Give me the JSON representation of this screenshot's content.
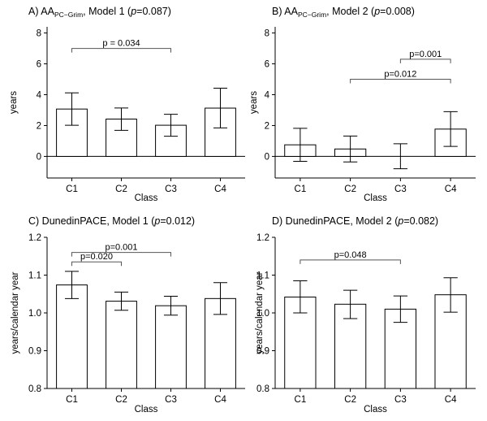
{
  "chart_data": [
    {
      "type": "bar",
      "title_parts": [
        {
          "text": "A) AA",
          "style": "normal"
        },
        {
          "text": "PC−Grim",
          "style": "sub"
        },
        {
          "text": ", Model 1 (",
          "style": "normal"
        },
        {
          "text": "p",
          "style": "italic"
        },
        {
          "text": "=0.087)",
          "style": "normal"
        }
      ],
      "categories": [
        "C1",
        "C2",
        "C3",
        "C4"
      ],
      "values": [
        3.07,
        2.42,
        2.02,
        3.13
      ],
      "error_low": [
        2.02,
        1.69,
        1.31,
        1.85
      ],
      "error_high": [
        4.12,
        3.14,
        2.73,
        4.42
      ],
      "xlabel": "Class",
      "ylabel": "years",
      "ylim": [
        -1.4,
        8.4
      ],
      "yticks": [
        0,
        2,
        4,
        6,
        8
      ],
      "ytick_labels": [
        "0",
        "2",
        "4",
        "6",
        "8"
      ],
      "zero_line": true,
      "comparisons": [
        {
          "from": 0,
          "to": 2,
          "y": 7.0,
          "label": "p = 0.034"
        }
      ]
    },
    {
      "type": "bar",
      "title_parts": [
        {
          "text": "B) AA",
          "style": "normal"
        },
        {
          "text": "PC−Grim",
          "style": "sub"
        },
        {
          "text": ", Model 2 (",
          "style": "normal"
        },
        {
          "text": "p",
          "style": "italic"
        },
        {
          "text": "=0.008)",
          "style": "normal"
        }
      ],
      "categories": [
        "C1",
        "C2",
        "C3",
        "C4"
      ],
      "values": [
        0.75,
        0.48,
        0.0,
        1.77
      ],
      "error_low": [
        -0.32,
        -0.36,
        -0.8,
        0.65
      ],
      "error_high": [
        1.82,
        1.32,
        0.82,
        2.9
      ],
      "xlabel": "Class",
      "ylabel": "years",
      "ylim": [
        -1.4,
        8.4
      ],
      "yticks": [
        0,
        2,
        4,
        6,
        8
      ],
      "ytick_labels": [
        "0",
        "2",
        "4",
        "6",
        "8"
      ],
      "zero_line": true,
      "comparisons": [
        {
          "from": 2,
          "to": 3,
          "y": 6.3,
          "label": "p=0.001"
        },
        {
          "from": 1,
          "to": 3,
          "y": 5.0,
          "label": "p=0.012"
        }
      ]
    },
    {
      "type": "bar",
      "title_parts": [
        {
          "text": "C) DunedinPACE, Model 1 (",
          "style": "normal"
        },
        {
          "text": "p",
          "style": "italic"
        },
        {
          "text": "=0.012)",
          "style": "normal"
        }
      ],
      "categories": [
        "C1",
        "C2",
        "C3",
        "C4"
      ],
      "values": [
        1.074,
        1.031,
        1.019,
        1.038
      ],
      "error_low": [
        1.038,
        1.007,
        0.994,
        0.996
      ],
      "error_high": [
        1.11,
        1.055,
        1.044,
        1.08
      ],
      "xlabel": "Class",
      "ylabel": "years/calendar year",
      "ylim": [
        0.8,
        1.2
      ],
      "yticks": [
        0.8,
        0.9,
        1.0,
        1.1,
        1.2
      ],
      "ytick_labels": [
        "0.8",
        "0.9",
        "1.0",
        "1.1",
        "1.2"
      ],
      "zero_line": false,
      "comparisons": [
        {
          "from": 0,
          "to": 2,
          "y": 1.16,
          "label": "p=0.001"
        },
        {
          "from": 0,
          "to": 1,
          "y": 1.135,
          "label": "p=0.020"
        }
      ]
    },
    {
      "type": "bar",
      "title_parts": [
        {
          "text": "D) DunedinPACE, Model 2 (",
          "style": "normal"
        },
        {
          "text": "p",
          "style": "italic"
        },
        {
          "text": "=0.082)",
          "style": "normal"
        }
      ],
      "categories": [
        "C1",
        "C2",
        "C3",
        "C4"
      ],
      "values": [
        1.042,
        1.023,
        1.01,
        1.048
      ],
      "error_low": [
        1.0,
        0.985,
        0.975,
        1.002
      ],
      "error_high": [
        1.085,
        1.06,
        1.045,
        1.093
      ],
      "xlabel": "Class",
      "ylabel": "years/calendar year",
      "ylim": [
        0.8,
        1.2
      ],
      "yticks": [
        0.8,
        0.9,
        1.0,
        1.1,
        1.2
      ],
      "ytick_labels": [
        "0.8",
        "0.9",
        "1.0",
        "1.1",
        "1.2"
      ],
      "zero_line": false,
      "comparisons": [
        {
          "from": 0,
          "to": 2,
          "y": 1.14,
          "label": "p=0.048"
        }
      ]
    }
  ]
}
